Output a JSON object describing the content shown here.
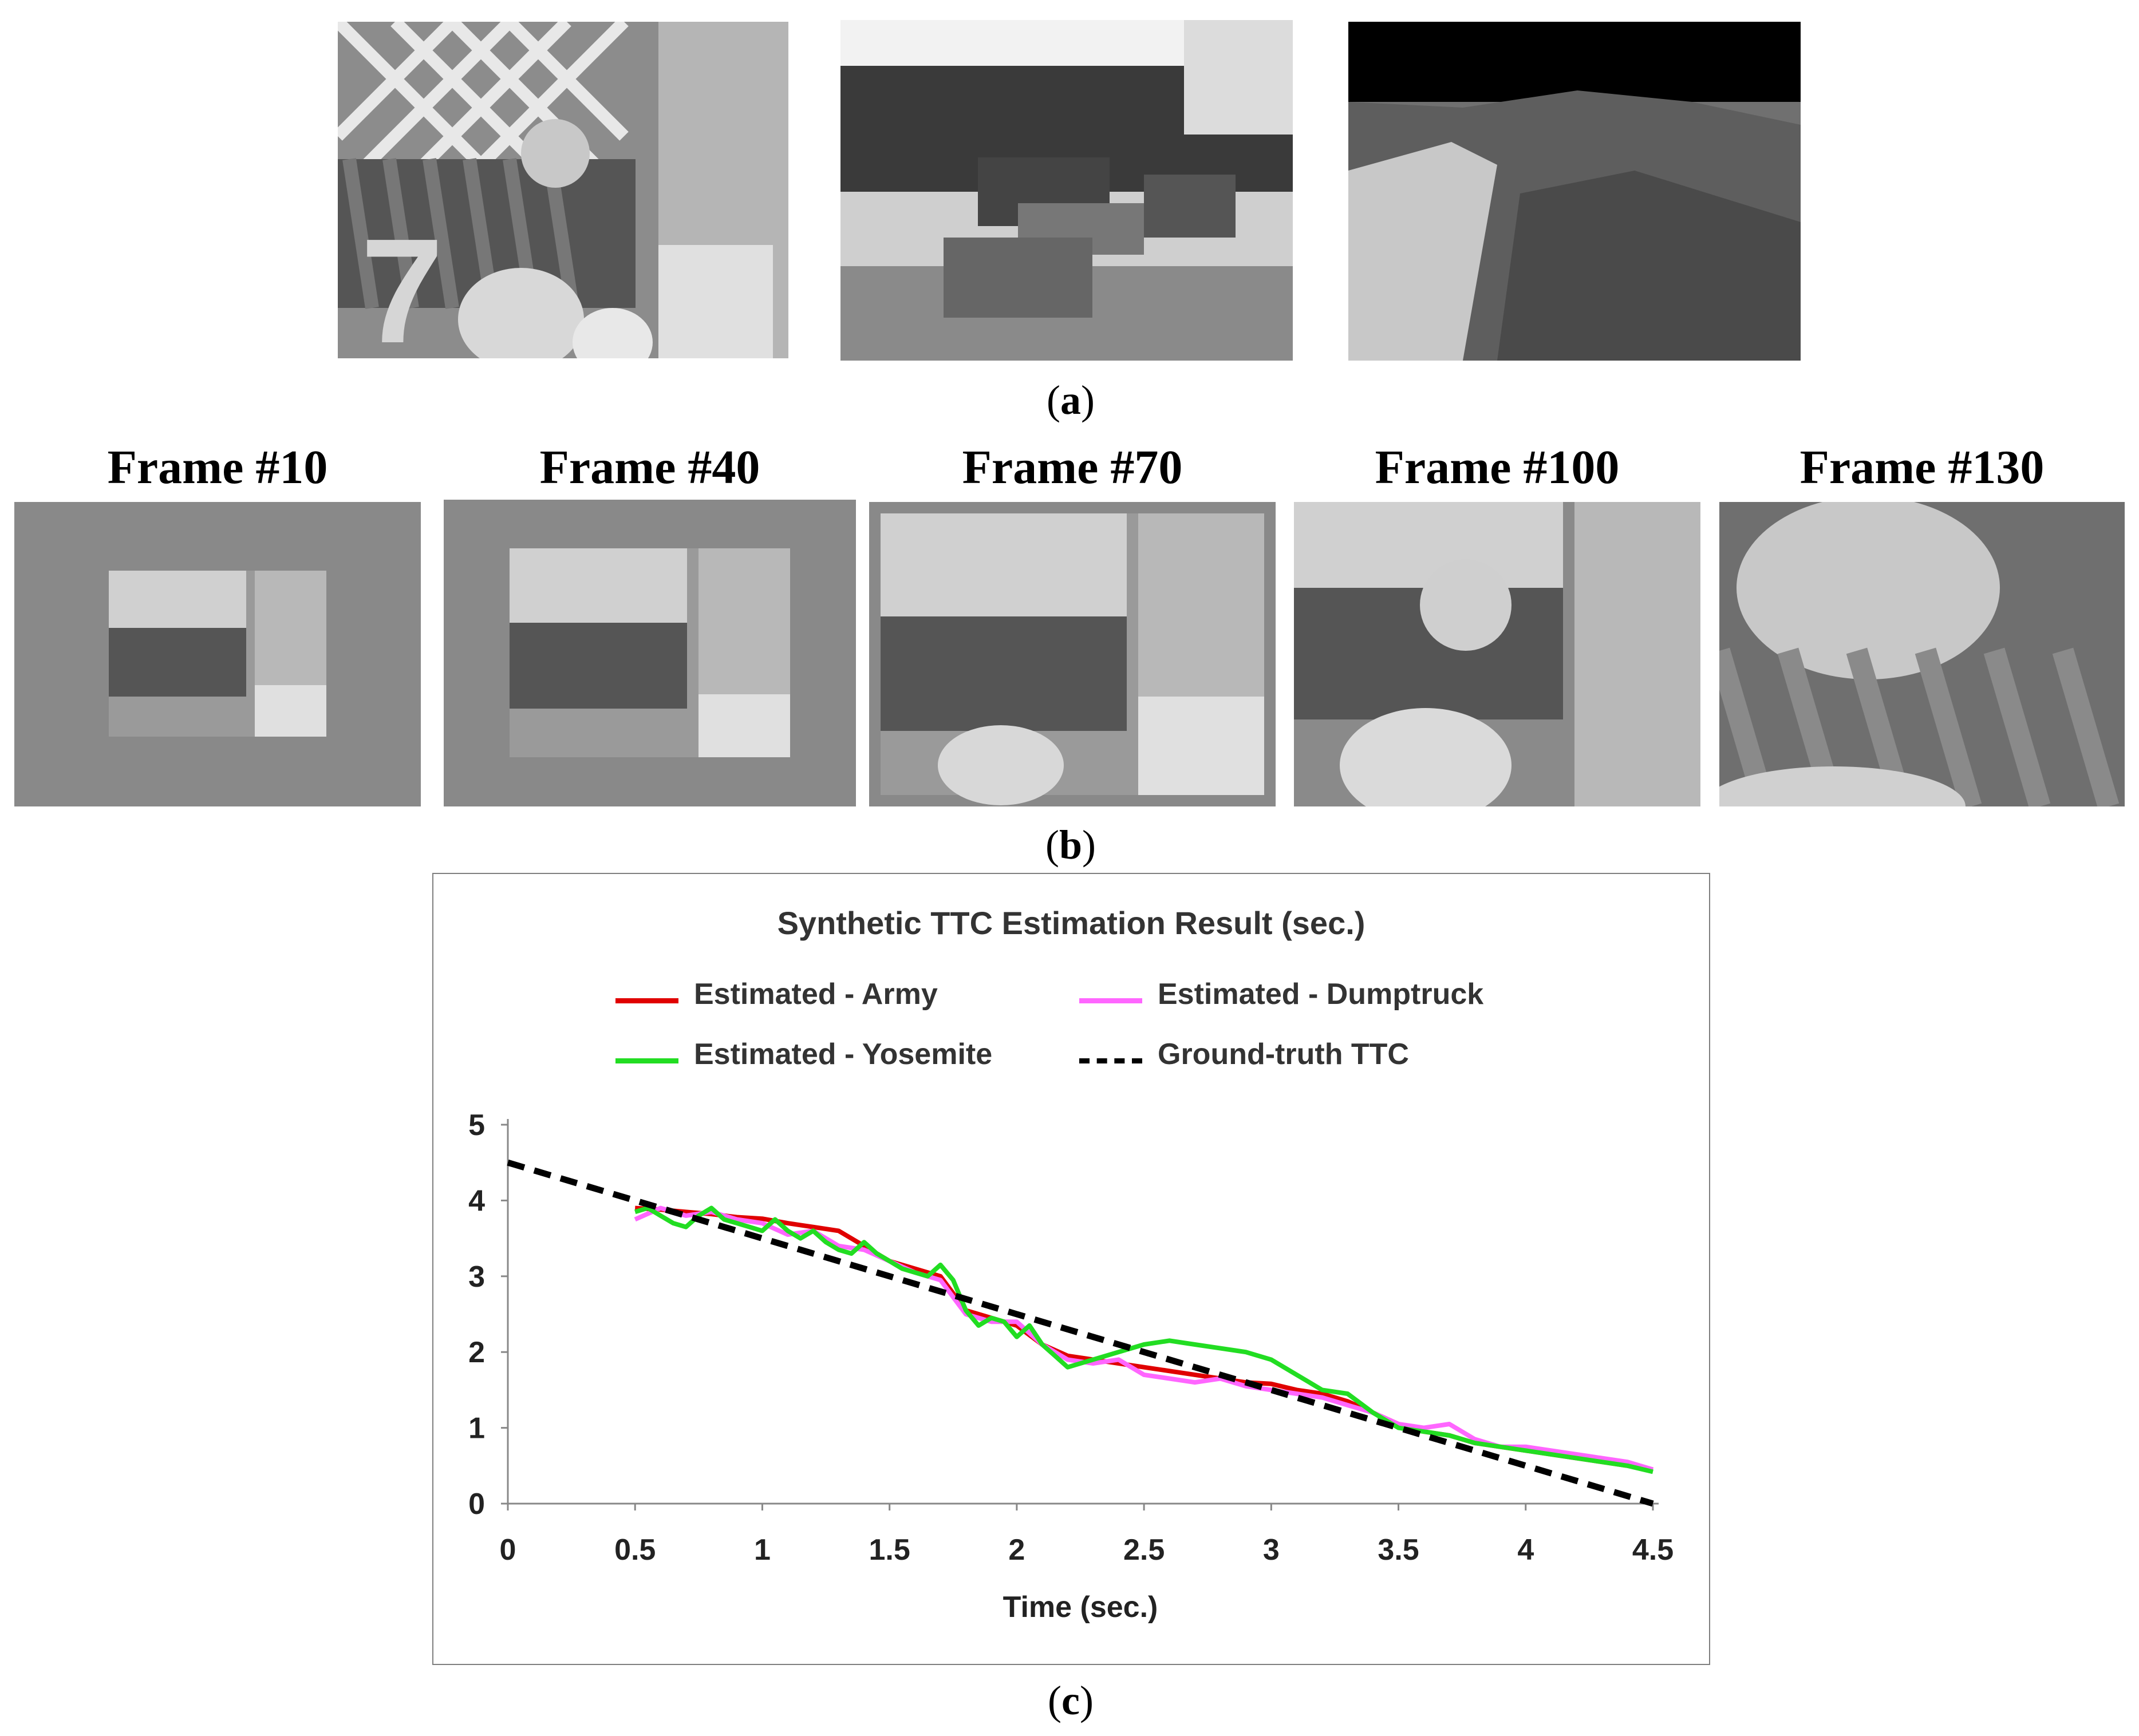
{
  "panel_a": {
    "caption": "a",
    "images": [
      {
        "name": "army-scene",
        "colors": {
          "bg": "#8a8a8a"
        }
      },
      {
        "name": "street-scene",
        "colors": {
          "bg": "#9a9a9a"
        }
      },
      {
        "name": "yosemite-scene",
        "colors": {
          "bg": "#6a6a6a"
        }
      }
    ]
  },
  "panel_b": {
    "caption": "b",
    "frames": [
      {
        "label": "Frame #10"
      },
      {
        "label": "Frame #40"
      },
      {
        "label": "Frame #70"
      },
      {
        "label": "Frame #100"
      },
      {
        "label": "Frame #130"
      }
    ]
  },
  "panel_c": {
    "caption": "c"
  },
  "chart_data": {
    "type": "line",
    "title": "Synthetic TTC Estimation Result (sec.)",
    "xlabel": "Time (sec.)",
    "ylabel": "",
    "xlim": [
      0,
      4.5
    ],
    "ylim": [
      0,
      5
    ],
    "x_ticks": [
      "0",
      "0.5",
      "1",
      "1.5",
      "2",
      "2.5",
      "3",
      "3.5",
      "4",
      "4.5"
    ],
    "y_ticks": [
      "0",
      "1",
      "2",
      "3",
      "4",
      "5"
    ],
    "grid": false,
    "legend_position": "top",
    "series": [
      {
        "name": "Estimated - Army",
        "color": "#e00000",
        "style": "solid",
        "x": [
          0.5,
          0.6,
          0.7,
          0.8,
          0.9,
          1.0,
          1.1,
          1.2,
          1.3,
          1.4,
          1.5,
          1.6,
          1.7,
          1.8,
          1.9,
          2.0,
          2.1,
          2.2,
          2.3,
          2.4,
          2.5,
          2.6,
          2.7,
          2.8,
          2.9,
          3.0,
          3.1,
          3.2,
          3.3,
          3.4,
          3.5,
          3.6,
          3.7,
          3.8,
          3.9,
          4.0,
          4.1,
          4.2,
          4.3,
          4.4,
          4.5
        ],
        "y": [
          3.9,
          3.88,
          3.85,
          3.82,
          3.78,
          3.76,
          3.7,
          3.65,
          3.6,
          3.4,
          3.2,
          3.1,
          3.0,
          2.55,
          2.45,
          2.35,
          2.1,
          1.95,
          1.9,
          1.85,
          1.8,
          1.75,
          1.7,
          1.65,
          1.6,
          1.58,
          1.5,
          1.45,
          1.35,
          1.2,
          1.05,
          0.95,
          0.9,
          0.8,
          0.75,
          0.7,
          0.65,
          0.6,
          0.55,
          0.5,
          0.45
        ]
      },
      {
        "name": "Estimated - Dumptruck",
        "color": "#ff66ff",
        "style": "solid",
        "x": [
          0.5,
          0.6,
          0.7,
          0.8,
          0.9,
          1.0,
          1.1,
          1.2,
          1.3,
          1.4,
          1.5,
          1.6,
          1.7,
          1.8,
          1.9,
          2.0,
          2.1,
          2.2,
          2.3,
          2.4,
          2.5,
          2.6,
          2.7,
          2.8,
          2.9,
          3.0,
          3.1,
          3.2,
          3.3,
          3.4,
          3.5,
          3.6,
          3.7,
          3.8,
          3.9,
          4.0,
          4.1,
          4.2,
          4.3,
          4.4,
          4.5
        ],
        "y": [
          3.75,
          3.9,
          3.8,
          3.85,
          3.75,
          3.7,
          3.55,
          3.6,
          3.4,
          3.35,
          3.2,
          3.05,
          2.95,
          2.5,
          2.4,
          2.4,
          2.1,
          1.9,
          1.85,
          1.9,
          1.7,
          1.65,
          1.6,
          1.65,
          1.55,
          1.5,
          1.45,
          1.4,
          1.3,
          1.2,
          1.05,
          1.0,
          1.05,
          0.85,
          0.75,
          0.75,
          0.7,
          0.65,
          0.6,
          0.55,
          0.45
        ]
      },
      {
        "name": "Estimated - Yosemite",
        "color": "#22dd22",
        "style": "solid",
        "x": [
          0.5,
          0.55,
          0.6,
          0.65,
          0.7,
          0.75,
          0.8,
          0.85,
          0.9,
          0.95,
          1.0,
          1.05,
          1.1,
          1.15,
          1.2,
          1.25,
          1.3,
          1.35,
          1.4,
          1.45,
          1.5,
          1.55,
          1.6,
          1.65,
          1.7,
          1.75,
          1.8,
          1.85,
          1.9,
          1.95,
          2.0,
          2.05,
          2.1,
          2.15,
          2.2,
          2.3,
          2.4,
          2.5,
          2.6,
          2.7,
          2.8,
          2.9,
          3.0,
          3.1,
          3.2,
          3.3,
          3.4,
          3.5,
          3.6,
          3.7,
          3.8,
          3.9,
          4.0,
          4.1,
          4.2,
          4.3,
          4.4,
          4.5
        ],
        "y": [
          3.85,
          3.9,
          3.8,
          3.7,
          3.65,
          3.8,
          3.9,
          3.75,
          3.7,
          3.65,
          3.6,
          3.75,
          3.6,
          3.5,
          3.6,
          3.45,
          3.35,
          3.3,
          3.45,
          3.3,
          3.2,
          3.1,
          3.05,
          3.0,
          3.15,
          2.95,
          2.55,
          2.35,
          2.45,
          2.4,
          2.2,
          2.35,
          2.1,
          1.95,
          1.8,
          1.9,
          2.0,
          2.1,
          2.15,
          2.1,
          2.05,
          2.0,
          1.9,
          1.7,
          1.5,
          1.45,
          1.2,
          1.0,
          0.95,
          0.9,
          0.8,
          0.75,
          0.7,
          0.65,
          0.6,
          0.55,
          0.5,
          0.42
        ]
      },
      {
        "name": "Ground-truth TTC",
        "color": "#000000",
        "style": "dashed",
        "x": [
          0,
          4.5
        ],
        "y": [
          4.5,
          0
        ]
      }
    ]
  }
}
